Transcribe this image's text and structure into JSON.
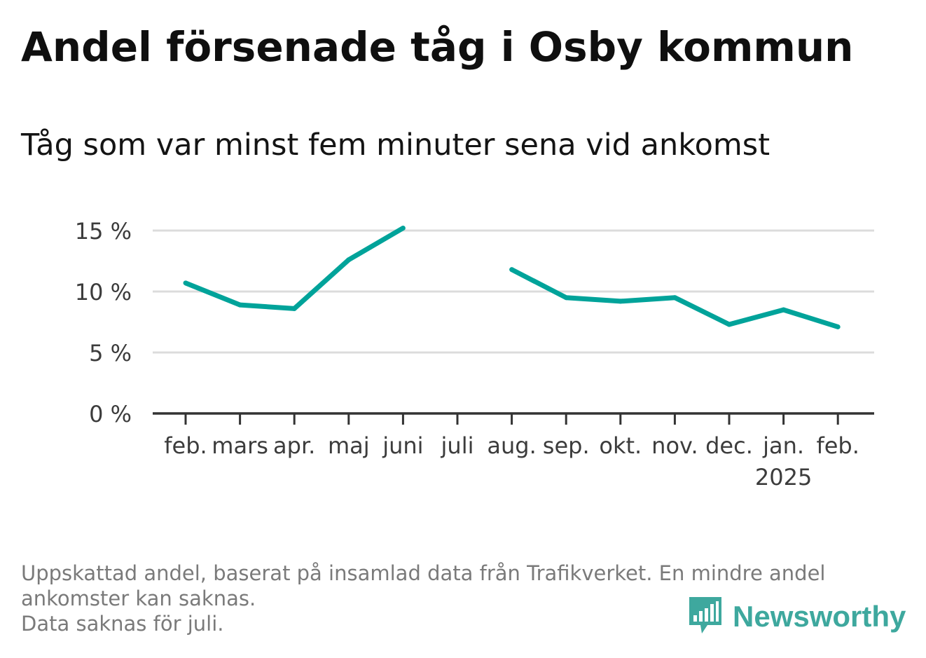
{
  "title": "Andel försenade tåg i Osby kommun",
  "subtitle": "Tåg som var minst fem minuter sena vid ankomst",
  "footer": {
    "line1": "Uppskattad andel, baserat på insamlad data från Trafikverket. En mindre andel",
    "line2": "ankomster kan saknas.",
    "line3": "Data saknas för juli."
  },
  "brand": {
    "name": "Newsworthy",
    "icon": "newsworthy-logo-icon",
    "color": "#3ea89e"
  },
  "chart_data": {
    "type": "line",
    "categories": [
      "feb.",
      "mars",
      "apr.",
      "maj",
      "juni",
      "juli",
      "aug.",
      "sep.",
      "okt.",
      "nov.",
      "dec.",
      "jan.",
      "feb."
    ],
    "year_label": {
      "under": "jan.",
      "text": "2025"
    },
    "series": [
      {
        "color": "#00a39a",
        "values": [
          10.7,
          8.9,
          8.6,
          12.6,
          15.2,
          null,
          11.8,
          9.5,
          9.2,
          9.5,
          7.3,
          8.5,
          7.1
        ]
      }
    ],
    "ylim": [
      0,
      15
    ],
    "yticks": [
      0,
      5,
      10,
      15
    ],
    "ytick_labels": [
      "0 %",
      "5 %",
      "10 %",
      "15 %"
    ],
    "grid": true,
    "missing": "juli"
  }
}
